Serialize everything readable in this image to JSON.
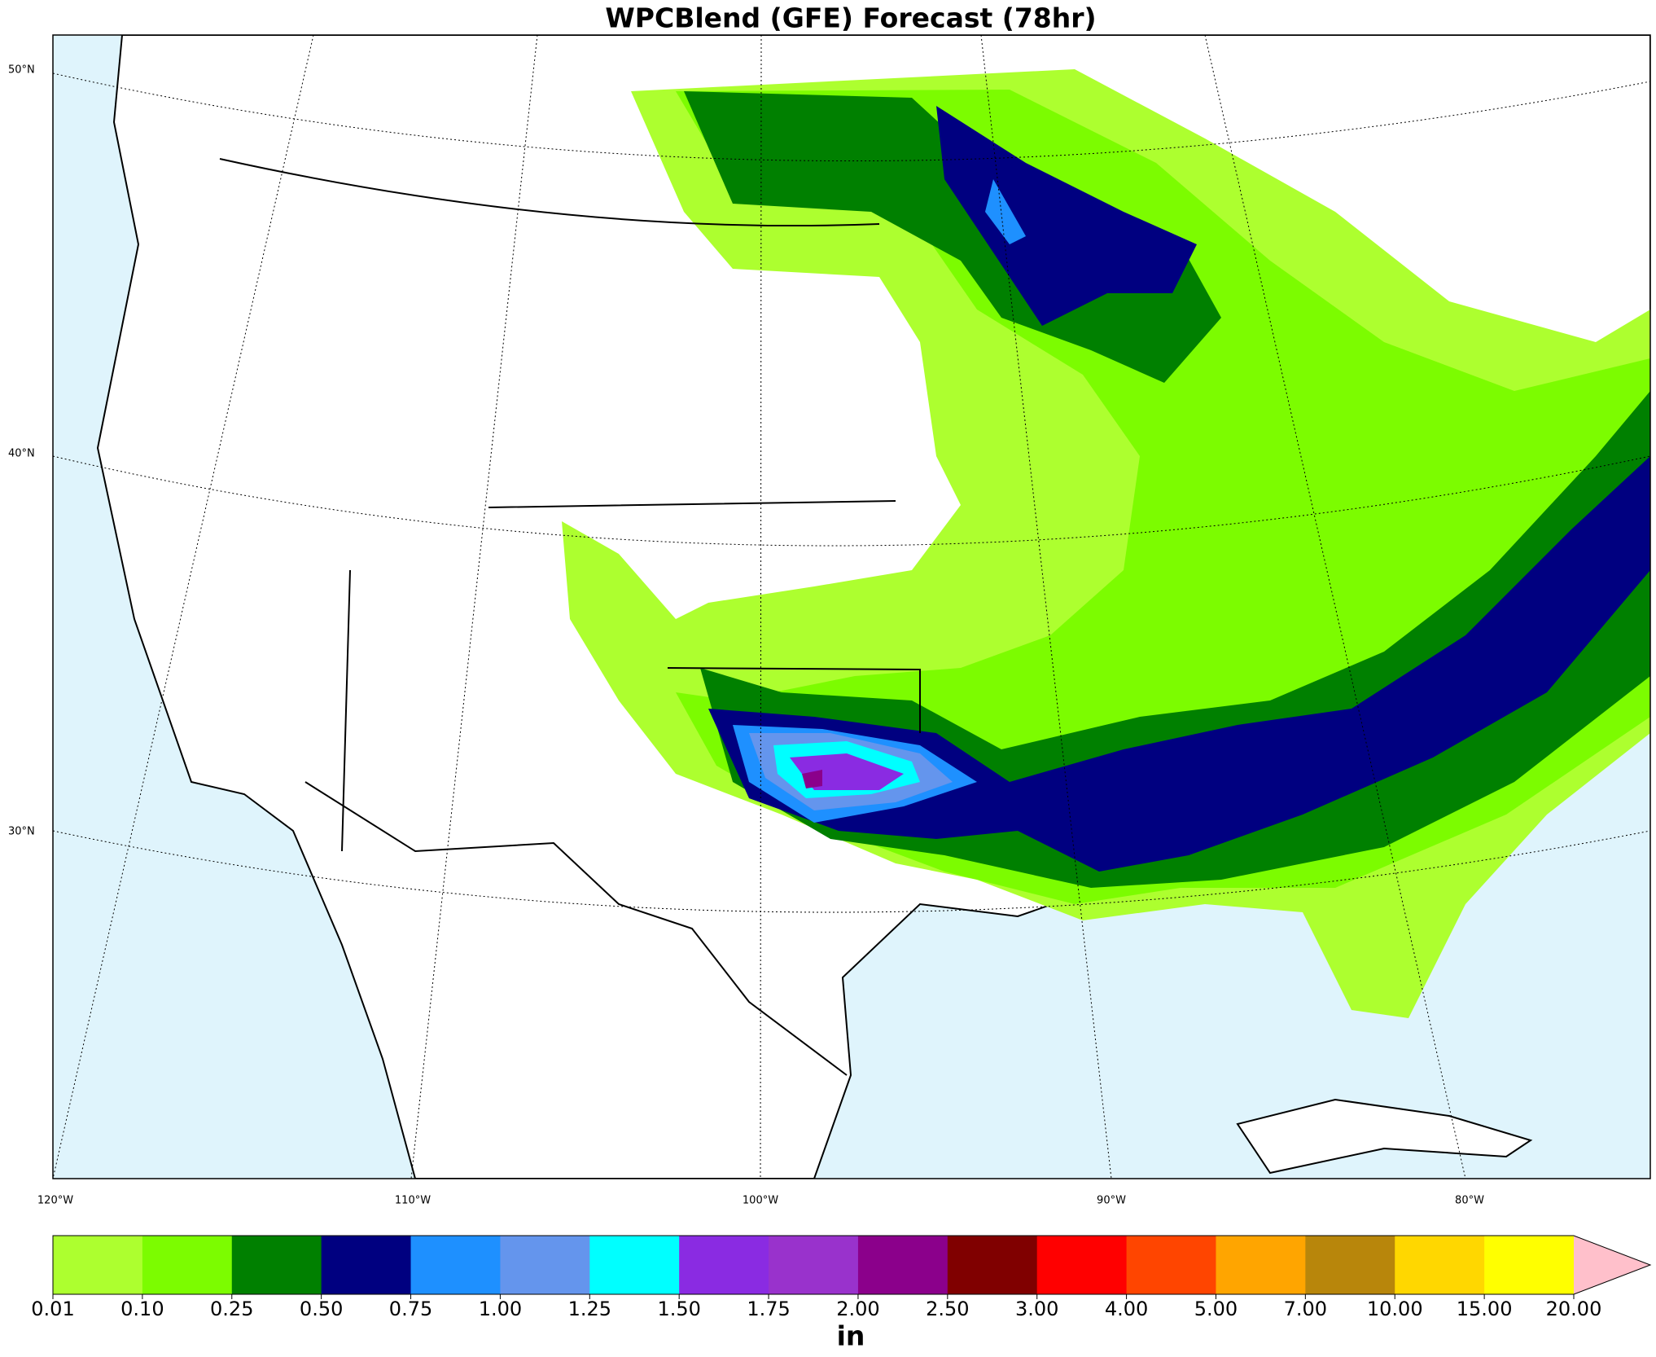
{
  "title": "WPCBlend (GFE) Forecast (78hr)",
  "lat_labels": [
    "50°N",
    "40°N",
    "30°N"
  ],
  "lon_labels": [
    "120°W",
    "110°W",
    "100°W",
    "90°W",
    "80°W"
  ],
  "colorbar": {
    "levels": [
      "0.01",
      "0.10",
      "0.25",
      "0.50",
      "0.75",
      "1.00",
      "1.25",
      "1.50",
      "1.75",
      "2.00",
      "2.50",
      "3.00",
      "4.00",
      "5.00",
      "7.00",
      "10.00",
      "15.00",
      "20.00"
    ],
    "colors": [
      "#adff2f",
      "#7cfc00",
      "#008000",
      "#000080",
      "#1e90ff",
      "#6495ed",
      "#00ffff",
      "#8a2be2",
      "#9932cc",
      "#8b008b",
      "#800000",
      "#ff0000",
      "#ff4500",
      "#ffa500",
      "#b8860b",
      "#ffd700",
      "#ffff00"
    ],
    "extend_color": "#ffc0cb",
    "unit": "in"
  }
}
